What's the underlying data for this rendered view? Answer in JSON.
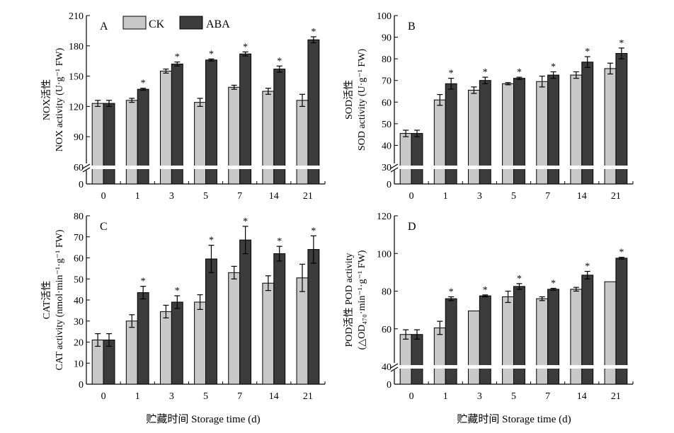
{
  "legend": [
    {
      "name": "CK",
      "color": "#c8c8c8"
    },
    {
      "name": "ABA",
      "color": "#3c3c3c"
    }
  ],
  "xlabel": "贮藏时间 Storage time (d)",
  "star": "*",
  "chart_data": [
    {
      "type": "bar",
      "panel": "A",
      "ylabel": [
        "NOX活性",
        "NOX activity (U·g⁻¹ FW)"
      ],
      "categories": [
        "0",
        "1",
        "3",
        "5",
        "7",
        "14",
        "21"
      ],
      "ylim": [
        60,
        210
      ],
      "yticks": [
        "60",
        "90",
        "120",
        "150",
        "180",
        "210"
      ],
      "zero_label": "0",
      "axis_break": true,
      "series": [
        {
          "name": "CK",
          "values": [
            123,
            126,
            155,
            124,
            139,
            135,
            126
          ],
          "errors": [
            3,
            2,
            2,
            4,
            2,
            3,
            6
          ]
        },
        {
          "name": "ABA",
          "values": [
            123,
            137,
            162,
            166,
            172,
            157,
            186
          ],
          "errors": [
            3,
            1,
            2,
            1,
            2,
            3,
            3
          ]
        }
      ],
      "significant": [
        false,
        true,
        true,
        true,
        true,
        true,
        true
      ]
    },
    {
      "type": "bar",
      "panel": "B",
      "ylabel": [
        "SOD活性",
        "SOD activity (U·g⁻¹ FW)"
      ],
      "categories": [
        "0",
        "1",
        "3",
        "5",
        "7",
        "14",
        "21"
      ],
      "ylim": [
        30,
        100
      ],
      "yticks": [
        "30",
        "40",
        "50",
        "60",
        "70",
        "80",
        "90",
        "100"
      ],
      "zero_label": "0",
      "axis_break": true,
      "series": [
        {
          "name": "CK",
          "values": [
            45.5,
            61,
            65.5,
            68.5,
            69.5,
            72.5,
            75.5
          ],
          "errors": [
            1.5,
            2.5,
            1.5,
            0.5,
            2.5,
            1.5,
            2.5
          ]
        },
        {
          "name": "ABA",
          "values": [
            45.5,
            68.5,
            70,
            71,
            72.5,
            78.5,
            82.5
          ],
          "errors": [
            1.5,
            2.5,
            1.5,
            0.5,
            1.5,
            2.5,
            2.5
          ]
        }
      ],
      "significant": [
        false,
        true,
        true,
        true,
        true,
        true,
        true
      ]
    },
    {
      "type": "bar",
      "panel": "C",
      "ylabel": [
        "CAT活性",
        "CAT activity (nmol·min⁻¹·g⁻¹ FW)"
      ],
      "categories": [
        "0",
        "1",
        "3",
        "5",
        "7",
        "14",
        "21"
      ],
      "ylim": [
        0,
        80
      ],
      "yticks": [
        "0",
        "10",
        "20",
        "30",
        "40",
        "50",
        "60",
        "70",
        "80"
      ],
      "axis_break": false,
      "series": [
        {
          "name": "CK",
          "values": [
            21,
            30,
            34.5,
            39,
            53,
            48,
            50.5
          ],
          "errors": [
            3,
            3,
            3,
            3.5,
            3,
            3.5,
            6.5
          ]
        },
        {
          "name": "ABA",
          "values": [
            21,
            43.5,
            39,
            59.5,
            68.5,
            62,
            64
          ],
          "errors": [
            3,
            3,
            3,
            6.5,
            6.5,
            3.5,
            6.5
          ]
        }
      ],
      "significant": [
        false,
        true,
        true,
        true,
        true,
        true,
        true
      ]
    },
    {
      "type": "bar",
      "panel": "D",
      "ylabel": [
        "POD活性 POD activity",
        "(△OD₄₇₀·min⁻¹·g⁻¹ FW)"
      ],
      "categories": [
        "0",
        "1",
        "3",
        "5",
        "7",
        "14",
        "21"
      ],
      "ylim": [
        40,
        120
      ],
      "yticks": [
        "40",
        "60",
        "80",
        "100",
        "120"
      ],
      "zero_label": "0",
      "axis_break": true,
      "series": [
        {
          "name": "CK",
          "values": [
            57,
            60.5,
            69.5,
            77,
            76,
            81,
            85
          ],
          "errors": [
            2.5,
            3.5,
            0,
            3,
            1,
            1,
            0
          ]
        },
        {
          "name": "ABA",
          "values": [
            57,
            76,
            77.5,
            82.5,
            81,
            88.5,
            97.5
          ],
          "errors": [
            2.5,
            1,
            0.5,
            1.5,
            0.5,
            2,
            0.5
          ]
        }
      ],
      "significant": [
        false,
        true,
        true,
        true,
        true,
        true,
        true
      ]
    }
  ]
}
